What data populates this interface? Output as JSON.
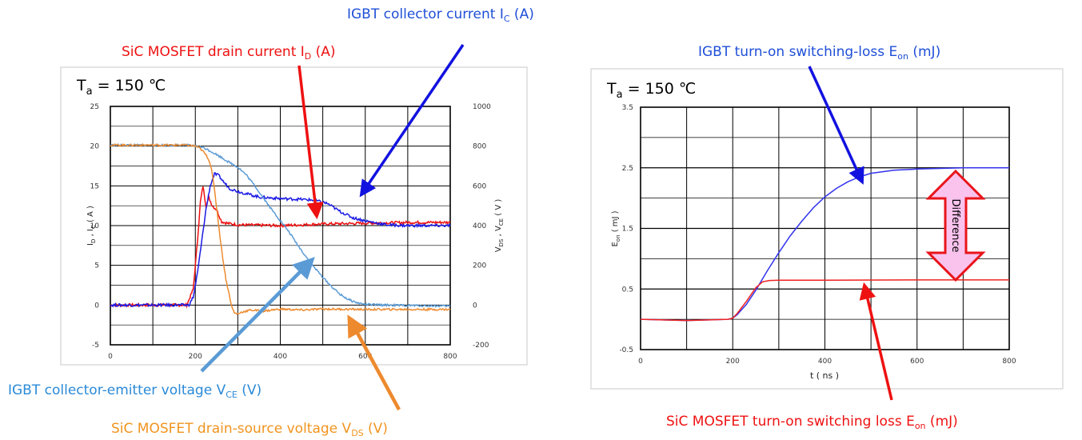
{
  "annotations": {
    "igbt_ic": {
      "main": "IGBT collector current I",
      "sub": "C",
      "tail": " (A)",
      "color": "#1f4fd8"
    },
    "sic_id": {
      "main": "SiC MOSFET drain current I",
      "sub": "D",
      "tail": " (A)",
      "color": "#ee1111"
    },
    "igbt_vce": {
      "main": "IGBT collector-emitter voltage V",
      "sub": "CE",
      "tail": " (V)",
      "color": "#2a8ad8"
    },
    "sic_vds": {
      "main": "SiC MOSFET drain-source voltage V",
      "sub": "DS",
      "tail": " (V)",
      "color": "#f0941e"
    },
    "igbt_eon": {
      "main": "IGBT turn-on switching-loss E",
      "sub": "on",
      "tail": " (mJ)",
      "color": "#1f4fd8"
    },
    "sic_eon": {
      "main": "SiC MOSFET turn-on switching loss E",
      "sub": "on",
      "tail": " (mJ)",
      "color": "#ee1111"
    }
  },
  "colors": {
    "igbt_current": "#1a1ae6",
    "sic_current": "#ee1111",
    "igbt_voltage": "#5b9bd5",
    "sic_voltage": "#ed8a2e"
  },
  "chart_data": [
    {
      "type": "line",
      "temperature": {
        "main": "T",
        "sub": "a",
        "tail": " = 150 ℃"
      },
      "xlim": [
        0,
        800
      ],
      "xticks": [
        "0",
        "200",
        "400",
        "600",
        "800"
      ],
      "ylim_left": [
        -5,
        25
      ],
      "yticks_left": [
        "-5",
        "0",
        "5",
        "10",
        "15",
        "20",
        "25"
      ],
      "ylim_right": [
        -200,
        1000
      ],
      "yticks_right": [
        "-200",
        "0",
        "200",
        "400",
        "600",
        "800",
        "1000"
      ],
      "ylabel_left": {
        "p1": "I",
        "s1": "D",
        "p2": " , I",
        "s2": "C",
        "p3": " ( A )"
      },
      "ylabel_right": {
        "p1": "V",
        "s1": "DS",
        "p2": " ,  V",
        "s2": "CE",
        "p3": "  ( V )"
      },
      "grid": true,
      "series": [
        {
          "key": "sic_id",
          "axis": "left",
          "color": "#ee1111",
          "points": [
            [
              0,
              0
            ],
            [
              180,
              0
            ],
            [
              195,
              2
            ],
            [
              205,
              8
            ],
            [
              212,
              13
            ],
            [
              218,
              15
            ],
            [
              225,
              12.5
            ],
            [
              232,
              13.5
            ],
            [
              240,
              12.5
            ],
            [
              250,
              12
            ],
            [
              262,
              10.5
            ],
            [
              275,
              10.3
            ],
            [
              300,
              10.1
            ],
            [
              400,
              10
            ],
            [
              500,
              10.2
            ],
            [
              600,
              10.3
            ],
            [
              700,
              10.4
            ],
            [
              800,
              10.4
            ]
          ]
        },
        {
          "key": "igbt_ic",
          "axis": "left",
          "color": "#1a1ae6",
          "points": [
            [
              0,
              0
            ],
            [
              185,
              0
            ],
            [
              195,
              1
            ],
            [
              205,
              4
            ],
            [
              215,
              8
            ],
            [
              225,
              12
            ],
            [
              235,
              15
            ],
            [
              245,
              16.5
            ],
            [
              255,
              16.3
            ],
            [
              265,
              15.6
            ],
            [
              280,
              14.7
            ],
            [
              300,
              14.3
            ],
            [
              350,
              13.6
            ],
            [
              400,
              13.4
            ],
            [
              450,
              13.3
            ],
            [
              480,
              13.2
            ],
            [
              510,
              12.8
            ],
            [
              540,
              11.8
            ],
            [
              570,
              11
            ],
            [
              600,
              10.6
            ],
            [
              650,
              10.1
            ],
            [
              700,
              10
            ],
            [
              800,
              10
            ]
          ]
        },
        {
          "key": "igbt_vce",
          "axis": "right",
          "color": "#5b9bd5",
          "points": [
            [
              0,
              805
            ],
            [
              180,
              805
            ],
            [
              200,
              800
            ],
            [
              220,
              792
            ],
            [
              240,
              770
            ],
            [
              260,
              745
            ],
            [
              280,
              718
            ],
            [
              300,
              695
            ],
            [
              320,
              655
            ],
            [
              340,
              600
            ],
            [
              360,
              540
            ],
            [
              380,
              480
            ],
            [
              400,
              425
            ],
            [
              420,
              370
            ],
            [
              440,
              305
            ],
            [
              460,
              245
            ],
            [
              480,
              190
            ],
            [
              500,
              140
            ],
            [
              520,
              95
            ],
            [
              540,
              55
            ],
            [
              560,
              28
            ],
            [
              580,
              12
            ],
            [
              600,
              3
            ],
            [
              650,
              0
            ],
            [
              700,
              -2
            ],
            [
              800,
              -5
            ]
          ]
        },
        {
          "key": "sic_vds",
          "axis": "right",
          "color": "#ed8a2e",
          "points": [
            [
              0,
              805
            ],
            [
              180,
              805
            ],
            [
              200,
              800
            ],
            [
              210,
              790
            ],
            [
              220,
              770
            ],
            [
              230,
              740
            ],
            [
              238,
              690
            ],
            [
              245,
              580
            ],
            [
              252,
              460
            ],
            [
              258,
              345
            ],
            [
              265,
              230
            ],
            [
              272,
              130
            ],
            [
              280,
              50
            ],
            [
              286,
              -10
            ],
            [
              292,
              -40
            ],
            [
              300,
              -45
            ],
            [
              310,
              -35
            ],
            [
              330,
              -25
            ],
            [
              360,
              -30
            ],
            [
              400,
              -20
            ],
            [
              450,
              -25
            ],
            [
              500,
              -20
            ],
            [
              600,
              -22
            ],
            [
              700,
              -22
            ],
            [
              800,
              -22
            ]
          ]
        }
      ]
    },
    {
      "type": "line",
      "temperature": {
        "main": "T",
        "sub": "a",
        "tail": " = 150 ℃"
      },
      "xlim": [
        0,
        800
      ],
      "xticks": [
        "0",
        "200",
        "400",
        "600",
        "800"
      ],
      "ylim": [
        -0.5,
        3.5
      ],
      "yticks": [
        "-0.5",
        "0.5",
        "1.5",
        "2.5",
        "3.5"
      ],
      "xlabel": "t ( ns )",
      "ylabel": {
        "p1": "E",
        "s1": "on",
        "p3": " ( mJ )"
      },
      "grid": true,
      "difference_label": "Difference",
      "series": [
        {
          "key": "igbt_eon",
          "color": "#3333ee",
          "points": [
            [
              0,
              0
            ],
            [
              100,
              -0.02
            ],
            [
              190,
              0
            ],
            [
              200,
              0.02
            ],
            [
              210,
              0.08
            ],
            [
              230,
              0.25
            ],
            [
              250,
              0.48
            ],
            [
              275,
              0.8
            ],
            [
              300,
              1.1
            ],
            [
              325,
              1.38
            ],
            [
              350,
              1.62
            ],
            [
              375,
              1.84
            ],
            [
              400,
              2.02
            ],
            [
              425,
              2.16
            ],
            [
              450,
              2.27
            ],
            [
              475,
              2.35
            ],
            [
              500,
              2.41
            ],
            [
              550,
              2.46
            ],
            [
              600,
              2.48
            ],
            [
              700,
              2.5
            ],
            [
              800,
              2.5
            ]
          ]
        },
        {
          "key": "sic_eon",
          "color": "#ee2222",
          "points": [
            [
              0,
              0
            ],
            [
              100,
              -0.02
            ],
            [
              190,
              0
            ],
            [
              200,
              0.02
            ],
            [
              210,
              0.1
            ],
            [
              230,
              0.3
            ],
            [
              250,
              0.52
            ],
            [
              265,
              0.62
            ],
            [
              280,
              0.64
            ],
            [
              300,
              0.645
            ],
            [
              400,
              0.645
            ],
            [
              600,
              0.65
            ],
            [
              800,
              0.65
            ]
          ]
        }
      ]
    }
  ]
}
